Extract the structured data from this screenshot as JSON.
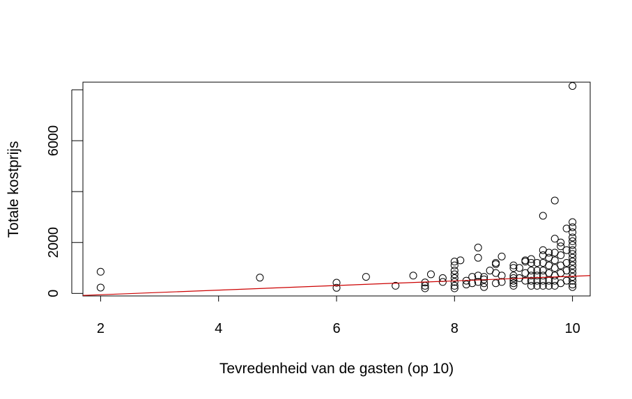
{
  "chart_data": {
    "type": "scatter",
    "title": "",
    "xlabel": "Tevredenheid van de gasten (op 10)",
    "ylabel": "Totale kostprijs",
    "xlim": [
      1.7,
      10.3
    ],
    "ylim": [
      -100,
      8300
    ],
    "x_ticks": [
      2,
      4,
      6,
      8,
      10
    ],
    "y_ticks": [
      0,
      2000,
      4000,
      6000,
      8000
    ],
    "y_tick_labels": [
      "0",
      "2000",
      "",
      "6000",
      ""
    ],
    "grid": false,
    "legend": "none",
    "colors": {
      "points": "#000000",
      "trend_line": "#cc0000",
      "frame": "#000000"
    },
    "trend_line": {
      "x": [
        1.7,
        10.3
      ],
      "y": [
        -80,
        700
      ]
    },
    "x": [
      2,
      2,
      4.7,
      6,
      6,
      6.5,
      7,
      7.3,
      7.5,
      7.5,
      7.5,
      7.6,
      7.8,
      7.8,
      8,
      8,
      8,
      8,
      8,
      8,
      8,
      8,
      8.1,
      8.2,
      8.2,
      8.3,
      8.3,
      8.4,
      8.4,
      8.4,
      8.4,
      8.5,
      8.5,
      8.5,
      8.5,
      8.6,
      8.7,
      8.7,
      8.7,
      8.7,
      8.8,
      8.8,
      8.8,
      9,
      9,
      9,
      9,
      9,
      9,
      9,
      9.1,
      9.1,
      9.2,
      9.2,
      9.2,
      9.2,
      9.3,
      9.3,
      9.3,
      9.3,
      9.3,
      9.3,
      9.4,
      9.4,
      9.4,
      9.4,
      9.4,
      9.5,
      9.5,
      9.5,
      9.5,
      9.5,
      9.5,
      9.5,
      9.5,
      9.6,
      9.6,
      9.6,
      9.6,
      9.6,
      9.6,
      9.7,
      9.7,
      9.7,
      9.7,
      9.7,
      9.7,
      9.7,
      9.7,
      9.8,
      9.8,
      9.8,
      9.8,
      9.8,
      9.8,
      9.9,
      9.9,
      9.9,
      9.9,
      9.9,
      10,
      10,
      10,
      10,
      10,
      10,
      10,
      10,
      10,
      10,
      10,
      10,
      10,
      10,
      10,
      10,
      10,
      10
    ],
    "y": [
      850,
      230,
      620,
      420,
      220,
      650,
      300,
      700,
      430,
      300,
      200,
      750,
      600,
      450,
      1250,
      1100,
      900,
      750,
      600,
      450,
      300,
      200,
      1300,
      500,
      350,
      650,
      400,
      1800,
      1400,
      700,
      450,
      400,
      250,
      550,
      650,
      900,
      1200,
      1150,
      800,
      400,
      1450,
      700,
      450,
      1100,
      1000,
      700,
      600,
      500,
      400,
      300,
      1000,
      600,
      1300,
      1250,
      800,
      500,
      1350,
      1200,
      900,
      700,
      500,
      300,
      1200,
      900,
      700,
      500,
      300,
      3050,
      1700,
      1500,
      1200,
      900,
      700,
      500,
      300,
      1600,
      1400,
      1100,
      800,
      500,
      300,
      3650,
      2150,
      1600,
      1300,
      1000,
      700,
      500,
      300,
      2000,
      1850,
      1500,
      1100,
      800,
      400,
      2550,
      1700,
      1200,
      900,
      500,
      8150,
      2800,
      2600,
      2400,
      2200,
      2050,
      1900,
      1700,
      1550,
      1400,
      1250,
      1100,
      950,
      800,
      650,
      500,
      350,
      250
    ]
  }
}
